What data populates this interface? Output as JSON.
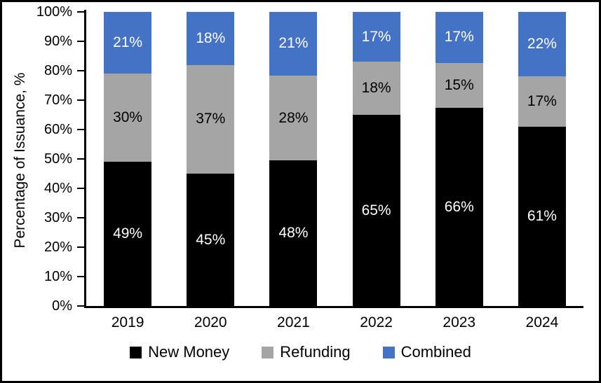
{
  "chart_data": {
    "type": "bar",
    "stacked": true,
    "title": "",
    "xlabel": "",
    "ylabel": "Percentage of Issuance, %",
    "ylim": [
      0,
      100
    ],
    "ytick_step": 10,
    "ytick_labels": [
      "0%",
      "10%",
      "20%",
      "30%",
      "40%",
      "50%",
      "60%",
      "70%",
      "80%",
      "90%",
      "100%"
    ],
    "grid": false,
    "legend_position": "bottom",
    "categories": [
      "2019",
      "2020",
      "2021",
      "2022",
      "2023",
      "2024"
    ],
    "series": [
      {
        "name": "New Money",
        "color": "#000000",
        "label_color": "#ffffff",
        "values": [
          49,
          45,
          48,
          65,
          66,
          61
        ]
      },
      {
        "name": "Refunding",
        "color": "#A5A5A5",
        "label_color": "#000000",
        "values": [
          30,
          37,
          28,
          18,
          15,
          17
        ]
      },
      {
        "name": "Combined",
        "color": "#4472C4",
        "label_color": "#ffffff",
        "values": [
          21,
          18,
          21,
          17,
          17,
          22
        ]
      }
    ],
    "data_label_suffix": "%"
  },
  "colors": {
    "background": "#ffffff",
    "border": "#000000",
    "axis": "#000000"
  }
}
